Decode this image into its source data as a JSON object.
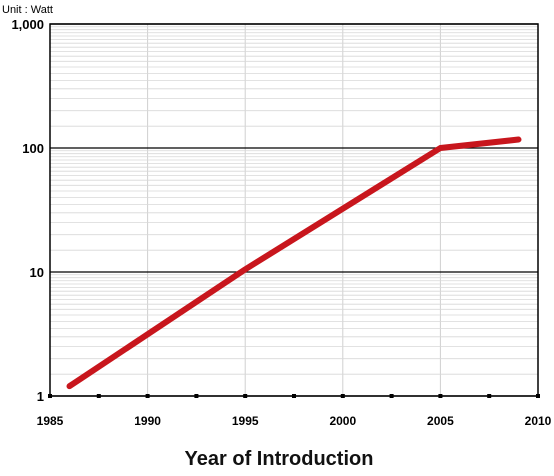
{
  "chart_data": {
    "type": "line",
    "unit_label": "Unit : Watt",
    "xlabel": "Year of Introduction",
    "ylabel": "",
    "yscale": "log",
    "xlim": [
      1985,
      2010
    ],
    "ylim": [
      1,
      1000
    ],
    "x_ticks": [
      1985,
      1990,
      1995,
      2000,
      2005,
      2010
    ],
    "y_ticks": [
      {
        "value": 1,
        "label": "1"
      },
      {
        "value": 10,
        "label": "10"
      },
      {
        "value": 100,
        "label": "100"
      },
      {
        "value": 1000,
        "label": "1,000"
      }
    ],
    "grid": true,
    "line_color": "#c8161d",
    "series": [
      {
        "x": [
          1986,
          1995,
          2005,
          2009
        ],
        "y": [
          1.2,
          10.5,
          100,
          117
        ]
      }
    ]
  }
}
